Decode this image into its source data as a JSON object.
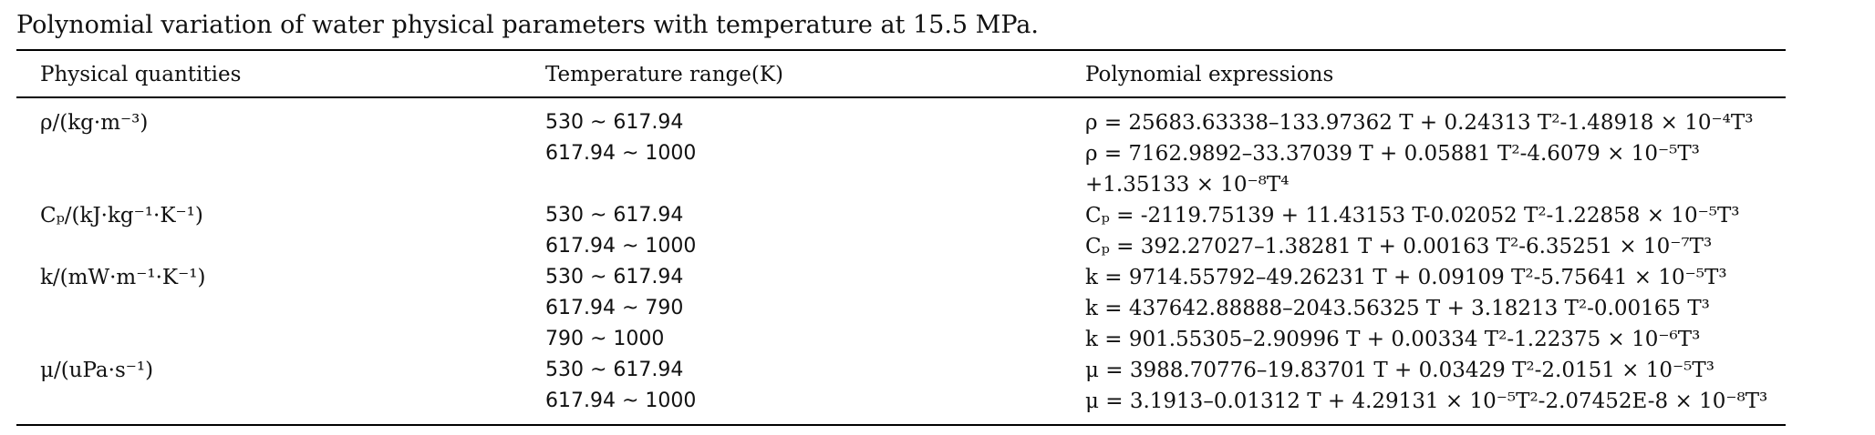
{
  "caption": "Polynomial variation of water physical parameters with temperature at 15.5 MPa.",
  "headers": {
    "quantity": "Physical quantities",
    "range": "Temperature range(K)",
    "expression": "Polynomial expressions"
  },
  "rows": [
    {
      "quantity": "ρ/(kg·m⁻³)",
      "range": "530 ~ 617.94",
      "expression": "ρ = 25683.63338–133.97362 T + 0.24313 T²-1.48918 × 10⁻⁴T³"
    },
    {
      "quantity": "",
      "range": "617.94 ~ 1000",
      "expression": "ρ = 7162.9892–33.37039 T + 0.05881 T²-4.6079 × 10⁻⁵T³"
    },
    {
      "quantity": "",
      "range": "",
      "expression": "+1.35133 × 10⁻⁸T⁴"
    },
    {
      "quantity": "Cₚ/(kJ·kg⁻¹·K⁻¹)",
      "range": "530 ~ 617.94",
      "expression": "Cₚ = -2119.75139 + 11.43153 T-0.02052 T²-1.22858 × 10⁻⁵T³"
    },
    {
      "quantity": "",
      "range": "617.94 ~ 1000",
      "expression": "Cₚ = 392.27027–1.38281 T + 0.00163 T²-6.35251 × 10⁻⁷T³"
    },
    {
      "quantity": "k/(mW·m⁻¹·K⁻¹)",
      "range": "530 ~ 617.94",
      "expression": "k = 9714.55792–49.26231 T + 0.09109 T²-5.75641 × 10⁻⁵T³"
    },
    {
      "quantity": "",
      "range": "617.94 ~ 790",
      "expression": "k = 437642.88888–2043.56325 T + 3.18213 T²-0.00165 T³"
    },
    {
      "quantity": "",
      "range": "790 ~ 1000",
      "expression": "k = 901.55305–2.90996 T + 0.00334 T²-1.22375 × 10⁻⁶T³"
    },
    {
      "quantity": "μ/(uPa·s⁻¹)",
      "range": "530 ~ 617.94",
      "expression": "μ = 3988.70776–19.83701 T + 0.03429 T²-2.0151 × 10⁻⁵T³"
    },
    {
      "quantity": "",
      "range": "617.94 ~ 1000",
      "expression": "μ = 3.1913–0.01312 T + 4.29131 × 10⁻⁵T²-2.07452E-8 × 10⁻⁸T³"
    }
  ]
}
